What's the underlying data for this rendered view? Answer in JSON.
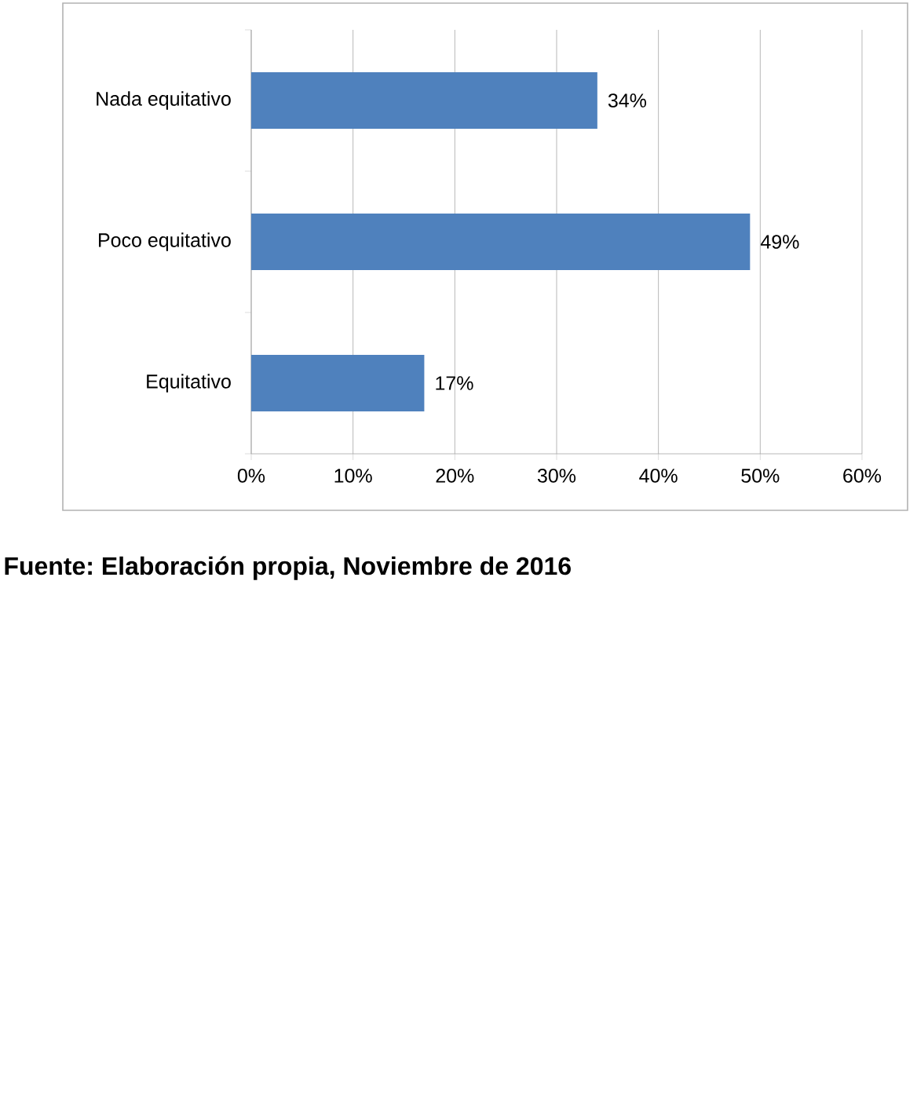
{
  "chart_data": {
    "type": "bar",
    "orientation": "horizontal",
    "categories": [
      "Nada equitativo",
      "Poco equitativo",
      "Equitativo"
    ],
    "values": [
      34,
      49,
      17
    ],
    "color": "#4f81bd",
    "value_labels": [
      "34%",
      "49%",
      "17%"
    ],
    "xlim": [
      0,
      60
    ],
    "xticks": [
      {
        "value": 0,
        "label": "0%"
      },
      {
        "value": 10,
        "label": "10%"
      },
      {
        "value": 20,
        "label": "20%"
      },
      {
        "value": 30,
        "label": "30%"
      },
      {
        "value": 40,
        "label": "40%"
      },
      {
        "value": 50,
        "label": "50%"
      },
      {
        "value": 60,
        "label": "60%"
      }
    ],
    "grid": "x",
    "annotations": [
      "Fuente: Elaboración propia, Noviembre de 2016"
    ]
  }
}
